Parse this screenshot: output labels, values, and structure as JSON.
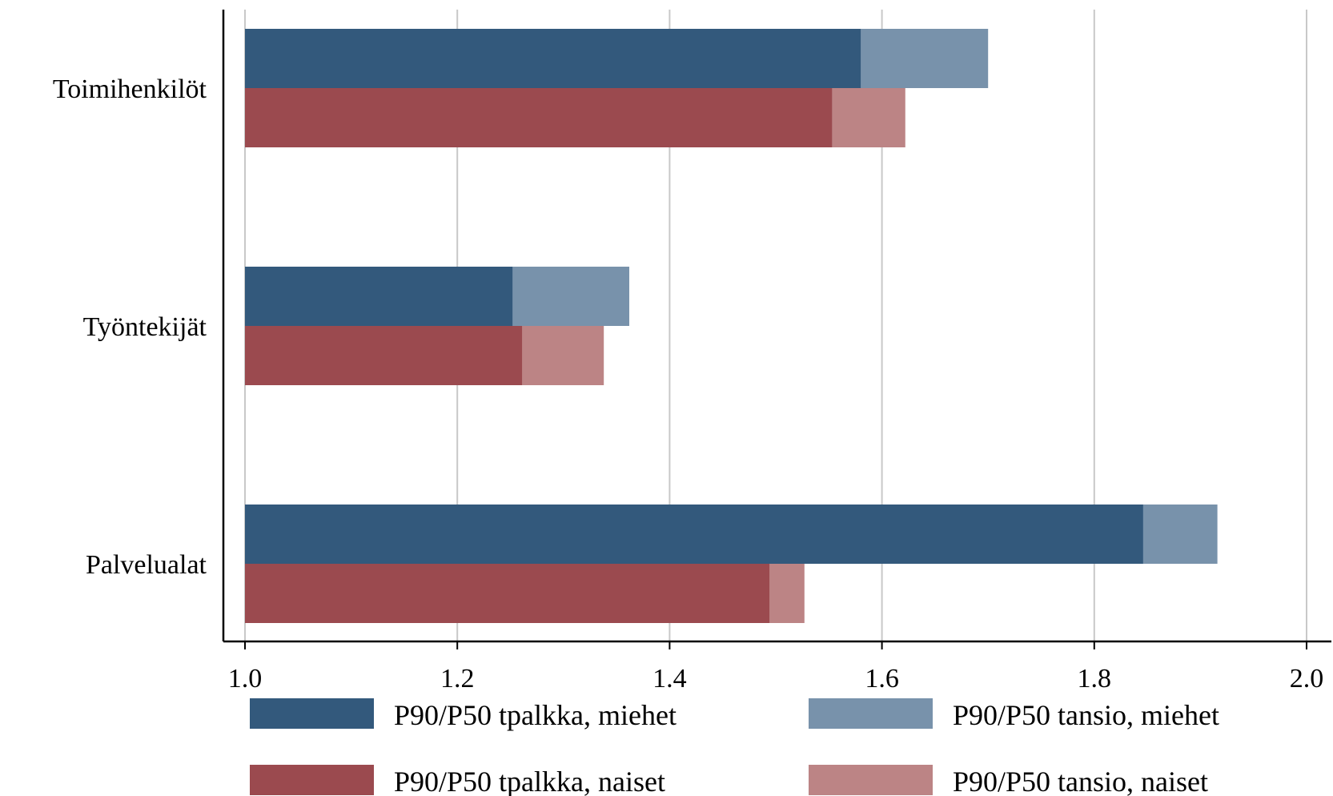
{
  "chart_data": {
    "type": "bar",
    "orientation": "horizontal",
    "categories": [
      "Toimihenkilöt",
      "Työntekijät",
      "Palvelualat"
    ],
    "series": [
      {
        "name": "P90/P50 tpalkka, miehet",
        "color": "#33597c",
        "values": [
          1.58,
          1.252,
          1.846
        ]
      },
      {
        "name": "P90/P50 tansio, miehet",
        "color": "#7892ab",
        "values": [
          1.7,
          1.362,
          1.916
        ]
      },
      {
        "name": "P90/P50 tpalkka, naiset",
        "color": "#9b4a4f",
        "values": [
          1.553,
          1.261,
          1.494
        ]
      },
      {
        "name": "P90/P50 tansio, naiset",
        "color": "#bc8485",
        "values": [
          1.622,
          1.338,
          1.527
        ]
      }
    ],
    "xlim": [
      1.0,
      2.0
    ],
    "xticks": [
      "1.0",
      "1.2",
      "1.4",
      "1.6",
      "1.8",
      "2.0"
    ],
    "xtick_values": [
      1.0,
      1.2,
      1.4,
      1.6,
      1.8,
      2.0
    ],
    "grid": true,
    "legend_position": "bottom"
  }
}
